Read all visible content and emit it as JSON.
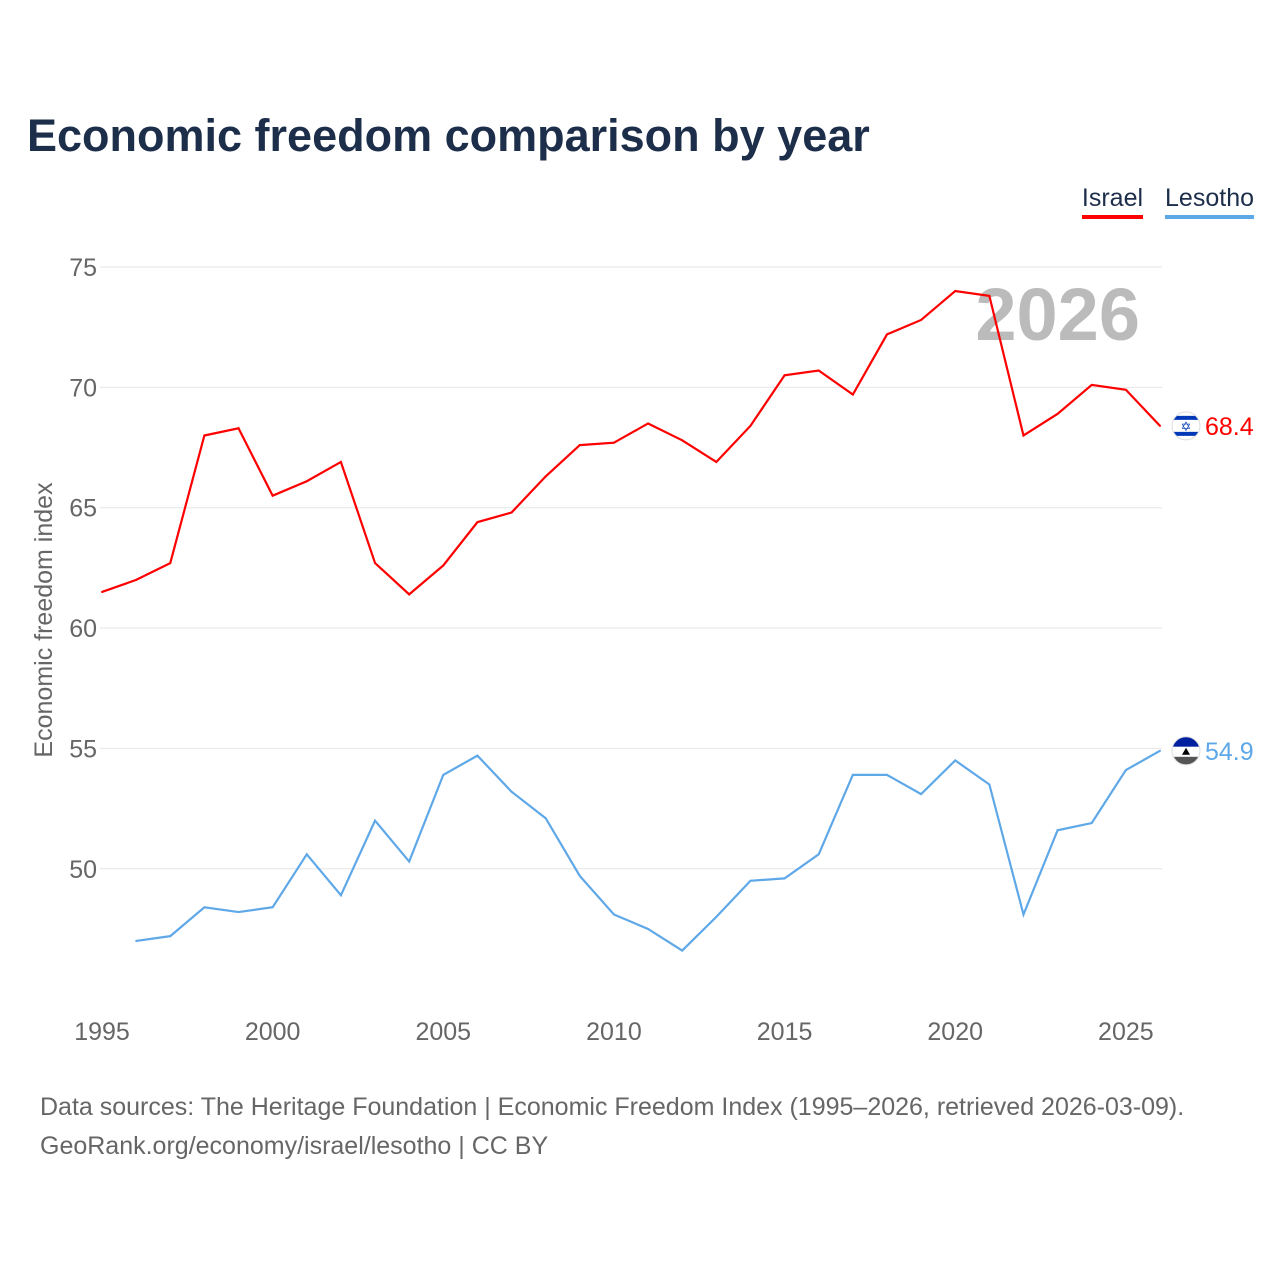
{
  "title": "Economic freedom comparison by year",
  "chart_data": {
    "type": "line",
    "title": "Economic freedom comparison by year",
    "xlabel": "",
    "ylabel": "Economic freedom index",
    "xlim": [
      1995,
      2026
    ],
    "ylim": [
      45,
      75
    ],
    "x_ticks": [
      1995,
      2000,
      2005,
      2010,
      2015,
      2020,
      2025
    ],
    "y_ticks": [
      50,
      55,
      60,
      65,
      70,
      75
    ],
    "grid": true,
    "legend_position": "top-right",
    "watermark_year": "2026",
    "series": [
      {
        "name": "Israel",
        "color": "#ff0000",
        "end_label": "68.4",
        "x": [
          1995,
          1996,
          1997,
          1998,
          1999,
          2000,
          2001,
          2002,
          2003,
          2004,
          2005,
          2006,
          2007,
          2008,
          2009,
          2010,
          2011,
          2012,
          2013,
          2014,
          2015,
          2016,
          2017,
          2018,
          2019,
          2020,
          2021,
          2022,
          2023,
          2024,
          2025,
          2026
        ],
        "values": [
          61.5,
          62.0,
          62.7,
          68.0,
          68.3,
          65.5,
          66.1,
          66.9,
          62.7,
          61.4,
          62.6,
          64.4,
          64.8,
          66.3,
          67.6,
          67.7,
          68.5,
          67.8,
          66.9,
          68.4,
          70.5,
          70.7,
          69.7,
          72.2,
          72.8,
          74.0,
          73.8,
          68.0,
          68.9,
          70.1,
          69.9,
          68.4
        ]
      },
      {
        "name": "Lesotho",
        "color": "#5fa8e8",
        "end_label": "54.9",
        "x": [
          1996,
          1997,
          1998,
          1999,
          2000,
          2001,
          2002,
          2003,
          2004,
          2005,
          2006,
          2007,
          2008,
          2009,
          2010,
          2011,
          2012,
          2013,
          2014,
          2015,
          2016,
          2017,
          2018,
          2019,
          2020,
          2021,
          2022,
          2023,
          2024,
          2025,
          2026
        ],
        "values": [
          47.0,
          47.2,
          48.4,
          48.2,
          48.4,
          50.6,
          48.9,
          52.0,
          50.3,
          53.9,
          54.7,
          53.2,
          52.1,
          49.7,
          48.1,
          47.5,
          46.6,
          48.0,
          49.5,
          49.6,
          50.6,
          53.9,
          53.9,
          53.1,
          54.5,
          53.5,
          48.1,
          51.6,
          51.9,
          54.1,
          54.9
        ]
      }
    ]
  },
  "source": {
    "line1": "Data sources: The Heritage Foundation | Economic Freedom Index (1995–2026, retrieved 2026-03-09).",
    "line2": "GeoRank.org/economy/israel/lesotho | CC BY"
  }
}
